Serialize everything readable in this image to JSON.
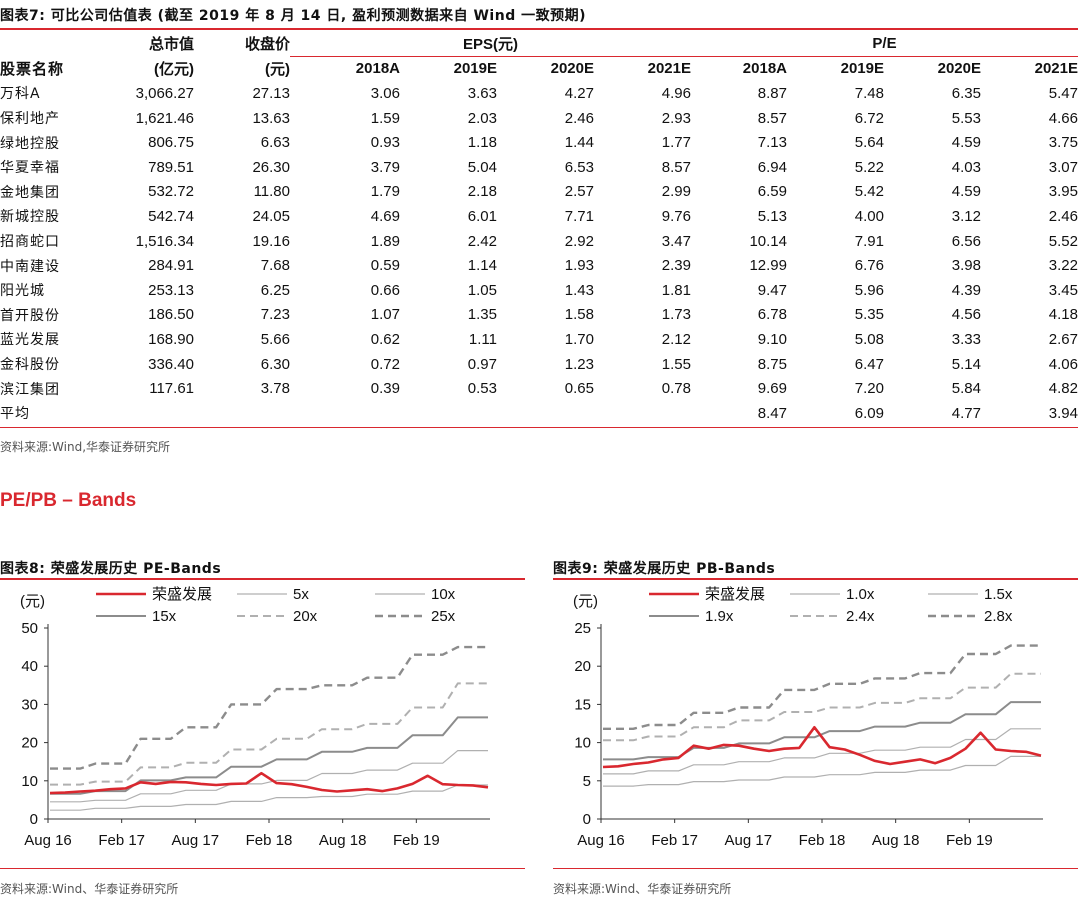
{
  "table": {
    "title": "图表7:  可比公司估值表 (截至 2019 年 8 月 14 日, 盈利预测数据来自 Wind 一致预期)",
    "header_row1": {
      "mktcap": "总市值",
      "close": "收盘价",
      "eps": "EPS(元)",
      "pe": "P/E"
    },
    "header_row2": {
      "name": "股票名称",
      "mktcap_unit": "(亿元)",
      "close_unit": "(元)",
      "years": [
        "2018A",
        "2019E",
        "2020E",
        "2021E"
      ]
    },
    "rows": [
      {
        "name": "万科A",
        "mktcap": "3,066.27",
        "close": "27.13",
        "eps": [
          "3.06",
          "3.63",
          "4.27",
          "4.96"
        ],
        "pe": [
          "8.87",
          "7.48",
          "6.35",
          "5.47"
        ]
      },
      {
        "name": "保利地产",
        "mktcap": "1,621.46",
        "close": "13.63",
        "eps": [
          "1.59",
          "2.03",
          "2.46",
          "2.93"
        ],
        "pe": [
          "8.57",
          "6.72",
          "5.53",
          "4.66"
        ]
      },
      {
        "name": "绿地控股",
        "mktcap": "806.75",
        "close": "6.63",
        "eps": [
          "0.93",
          "1.18",
          "1.44",
          "1.77"
        ],
        "pe": [
          "7.13",
          "5.64",
          "4.59",
          "3.75"
        ]
      },
      {
        "name": "华夏幸福",
        "mktcap": "789.51",
        "close": "26.30",
        "eps": [
          "3.79",
          "5.04",
          "6.53",
          "8.57"
        ],
        "pe": [
          "6.94",
          "5.22",
          "4.03",
          "3.07"
        ]
      },
      {
        "name": "金地集团",
        "mktcap": "532.72",
        "close": "11.80",
        "eps": [
          "1.79",
          "2.18",
          "2.57",
          "2.99"
        ],
        "pe": [
          "6.59",
          "5.42",
          "4.59",
          "3.95"
        ]
      },
      {
        "name": "新城控股",
        "mktcap": "542.74",
        "close": "24.05",
        "eps": [
          "4.69",
          "6.01",
          "7.71",
          "9.76"
        ],
        "pe": [
          "5.13",
          "4.00",
          "3.12",
          "2.46"
        ]
      },
      {
        "name": "招商蛇口",
        "mktcap": "1,516.34",
        "close": "19.16",
        "eps": [
          "1.89",
          "2.42",
          "2.92",
          "3.47"
        ],
        "pe": [
          "10.14",
          "7.91",
          "6.56",
          "5.52"
        ]
      },
      {
        "name": "中南建设",
        "mktcap": "284.91",
        "close": "7.68",
        "eps": [
          "0.59",
          "1.14",
          "1.93",
          "2.39"
        ],
        "pe": [
          "12.99",
          "6.76",
          "3.98",
          "3.22"
        ]
      },
      {
        "name": "阳光城",
        "mktcap": "253.13",
        "close": "6.25",
        "eps": [
          "0.66",
          "1.05",
          "1.43",
          "1.81"
        ],
        "pe": [
          "9.47",
          "5.96",
          "4.39",
          "3.45"
        ]
      },
      {
        "name": "首开股份",
        "mktcap": "186.50",
        "close": "7.23",
        "eps": [
          "1.07",
          "1.35",
          "1.58",
          "1.73"
        ],
        "pe": [
          "6.78",
          "5.35",
          "4.56",
          "4.18"
        ]
      },
      {
        "name": "蓝光发展",
        "mktcap": "168.90",
        "close": "5.66",
        "eps": [
          "0.62",
          "1.11",
          "1.70",
          "2.12"
        ],
        "pe": [
          "9.10",
          "5.08",
          "3.33",
          "2.67"
        ]
      },
      {
        "name": "金科股份",
        "mktcap": "336.40",
        "close": "6.30",
        "eps": [
          "0.72",
          "0.97",
          "1.23",
          "1.55"
        ],
        "pe": [
          "8.75",
          "6.47",
          "5.14",
          "4.06"
        ]
      },
      {
        "name": "滨江集团",
        "mktcap": "117.61",
        "close": "3.78",
        "eps": [
          "0.39",
          "0.53",
          "0.65",
          "0.78"
        ],
        "pe": [
          "9.69",
          "7.20",
          "5.84",
          "4.82"
        ]
      },
      {
        "name": "平均",
        "mktcap": "",
        "close": "",
        "eps": [
          "",
          "",
          "",
          ""
        ],
        "pe": [
          "8.47",
          "6.09",
          "4.77",
          "3.94"
        ]
      }
    ],
    "source": "资料来源:Wind,华泰证券研究所"
  },
  "section_title": "PE/PB – Bands",
  "colors": {
    "accent": "#d9282f",
    "band_dark": "#8c8c8c",
    "band_light": "#b0b0b0"
  },
  "chart_data": [
    {
      "type": "line",
      "title": "图表8:  荣盛发展历史 PE-Bands",
      "ylabel": "(元)",
      "ylim": [
        0,
        50
      ],
      "yticks": [
        "0",
        "10",
        "20",
        "30",
        "40",
        "50"
      ],
      "xticks": [
        "Aug 16",
        "Feb 17",
        "Aug 17",
        "Feb 18",
        "Aug 18",
        "Feb 19"
      ],
      "x_range": [
        "2016-08",
        "2019-08"
      ],
      "series": [
        {
          "name": "荣盛发展",
          "style": "red-solid",
          "values": [
            6.8,
            6.9,
            7.2,
            7.4,
            7.8,
            8.0,
            9.6,
            9.2,
            9.7,
            9.6,
            9.2,
            8.9,
            9.2,
            9.3,
            12.0,
            9.4,
            9.1,
            8.4,
            7.6,
            7.2,
            7.5,
            7.8,
            7.3,
            8.0,
            9.2,
            11.3,
            9.1,
            8.9,
            8.8,
            8.3
          ]
        },
        {
          "name": "5x",
          "style": "light-solid",
          "values": [
            2.3,
            2.3,
            2.3,
            2.8,
            2.8,
            2.8,
            3.3,
            3.3,
            3.3,
            3.8,
            3.8,
            3.8,
            4.6,
            4.6,
            4.6,
            5.6,
            5.6,
            5.6,
            5.9,
            5.9,
            5.9,
            6.5,
            6.5,
            6.5,
            7.3,
            7.3,
            7.3,
            8.9,
            8.9,
            8.9
          ]
        },
        {
          "name": "10x",
          "style": "light-solid",
          "values": [
            4.5,
            4.5,
            4.5,
            4.9,
            4.9,
            4.9,
            6.6,
            6.6,
            6.6,
            7.5,
            7.5,
            7.5,
            9.2,
            9.2,
            9.2,
            10.1,
            10.1,
            10.1,
            11.9,
            11.9,
            11.9,
            12.8,
            12.8,
            12.8,
            14.6,
            14.6,
            14.6,
            17.9,
            17.9,
            17.9
          ]
        },
        {
          "name": "15x",
          "style": "dark-solid",
          "values": [
            6.6,
            6.6,
            6.6,
            7.3,
            7.3,
            7.3,
            10.1,
            10.1,
            10.1,
            10.9,
            10.9,
            10.9,
            13.7,
            13.7,
            13.7,
            15.6,
            15.6,
            15.6,
            17.6,
            17.6,
            17.6,
            18.6,
            18.6,
            18.6,
            21.9,
            21.9,
            21.9,
            26.6,
            26.6,
            26.6
          ]
        },
        {
          "name": "20x",
          "style": "light-dashed",
          "values": [
            9.0,
            9.0,
            9.0,
            9.8,
            9.8,
            9.8,
            13.5,
            13.5,
            13.5,
            14.7,
            14.7,
            14.7,
            18.2,
            18.2,
            18.2,
            21.0,
            21.0,
            21.0,
            23.5,
            23.5,
            23.5,
            24.9,
            24.9,
            24.9,
            29.2,
            29.2,
            29.2,
            35.5,
            35.5,
            35.5
          ]
        },
        {
          "name": "25x",
          "style": "dark-dashed",
          "values": [
            13.2,
            13.2,
            13.2,
            14.5,
            14.5,
            14.5,
            21.0,
            21.0,
            21.0,
            24.0,
            24.0,
            24.0,
            30.0,
            30.0,
            30.0,
            34.0,
            34.0,
            34.0,
            35.0,
            35.0,
            35.0,
            37.0,
            37.0,
            37.0,
            43.0,
            43.0,
            43.0,
            45.0,
            45.0,
            45.0
          ]
        }
      ],
      "source": "资料来源:Wind、华泰证券研究所"
    },
    {
      "type": "line",
      "title": "图表9:  荣盛发展历史 PB-Bands",
      "ylabel": "(元)",
      "ylim": [
        0,
        25
      ],
      "yticks": [
        "0",
        "5",
        "10",
        "15",
        "20",
        "25"
      ],
      "xticks": [
        "Aug 16",
        "Feb 17",
        "Aug 17",
        "Feb 18",
        "Aug 18",
        "Feb 19"
      ],
      "x_range": [
        "2016-08",
        "2019-08"
      ],
      "series": [
        {
          "name": "荣盛发展",
          "style": "red-solid",
          "values": [
            6.8,
            6.9,
            7.2,
            7.4,
            7.8,
            8.0,
            9.6,
            9.2,
            9.7,
            9.6,
            9.2,
            8.9,
            9.2,
            9.3,
            12.0,
            9.4,
            9.1,
            8.4,
            7.6,
            7.2,
            7.5,
            7.8,
            7.3,
            8.0,
            9.2,
            11.3,
            9.1,
            8.9,
            8.8,
            8.3
          ]
        },
        {
          "name": "1.0x",
          "style": "light-solid",
          "values": [
            4.3,
            4.3,
            4.3,
            4.5,
            4.5,
            4.5,
            4.9,
            4.9,
            4.9,
            5.1,
            5.1,
            5.1,
            5.5,
            5.5,
            5.5,
            5.8,
            5.8,
            5.8,
            6.1,
            6.1,
            6.1,
            6.4,
            6.4,
            6.4,
            7.0,
            7.0,
            7.0,
            8.2,
            8.2,
            8.2
          ]
        },
        {
          "name": "1.5x",
          "style": "light-solid",
          "values": [
            5.9,
            5.9,
            5.9,
            6.3,
            6.3,
            6.3,
            7.1,
            7.1,
            7.1,
            7.5,
            7.5,
            7.5,
            8.0,
            8.0,
            8.0,
            8.6,
            8.6,
            8.6,
            9.0,
            9.0,
            9.0,
            9.4,
            9.4,
            9.4,
            10.4,
            10.4,
            10.4,
            11.8,
            11.8,
            11.8
          ]
        },
        {
          "name": "1.9x",
          "style": "dark-solid",
          "values": [
            7.8,
            7.8,
            7.8,
            8.1,
            8.1,
            8.1,
            9.3,
            9.3,
            9.3,
            9.9,
            9.9,
            9.9,
            10.7,
            10.7,
            10.7,
            11.5,
            11.5,
            11.5,
            12.1,
            12.1,
            12.1,
            12.6,
            12.6,
            12.6,
            13.7,
            13.7,
            13.7,
            15.3,
            15.3,
            15.3
          ]
        },
        {
          "name": "2.4x",
          "style": "light-dashed",
          "values": [
            10.3,
            10.3,
            10.3,
            10.8,
            10.8,
            10.8,
            12.0,
            12.0,
            12.0,
            12.9,
            12.9,
            12.9,
            14.0,
            14.0,
            14.0,
            14.6,
            14.6,
            14.6,
            15.2,
            15.2,
            15.2,
            15.8,
            15.8,
            15.8,
            17.2,
            17.2,
            17.2,
            19.0,
            19.0,
            19.0
          ]
        },
        {
          "name": "2.8x",
          "style": "dark-dashed",
          "values": [
            11.8,
            11.8,
            11.8,
            12.3,
            12.3,
            12.3,
            13.9,
            13.9,
            13.9,
            14.6,
            14.6,
            14.6,
            16.9,
            16.9,
            16.9,
            17.7,
            17.7,
            17.7,
            18.4,
            18.4,
            18.4,
            19.1,
            19.1,
            19.1,
            21.6,
            21.6,
            21.6,
            22.7,
            22.7,
            22.7
          ]
        }
      ],
      "source": "资料来源:Wind、华泰证券研究所"
    }
  ]
}
